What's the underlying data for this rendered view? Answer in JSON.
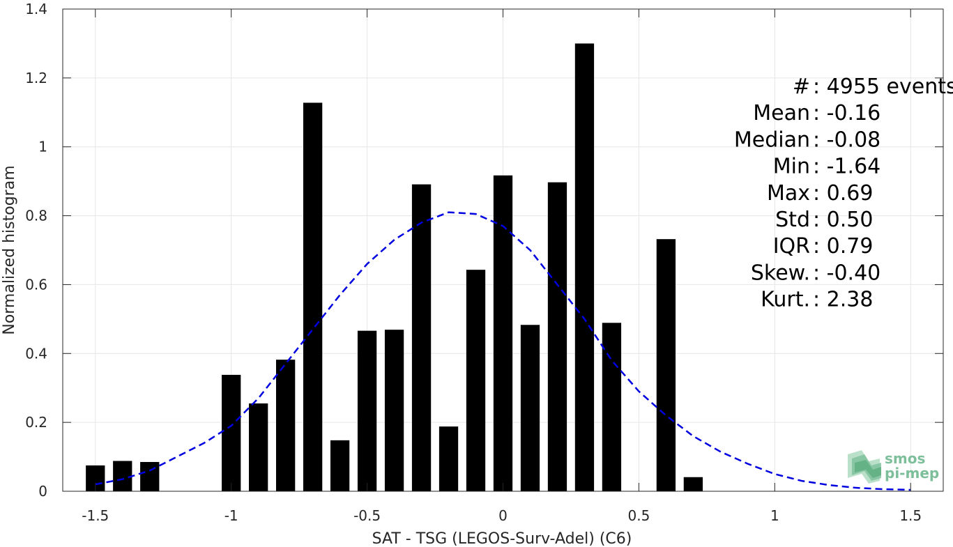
{
  "chart_data": {
    "type": "bar",
    "xlabel": "SAT - TSG (LEGOS-Surv-Adel) (C6)",
    "ylabel": "Normalized histogram",
    "xlim": [
      -1.62,
      1.62
    ],
    "ylim": [
      0,
      1.4
    ],
    "xticks": [
      -1.5,
      -1,
      -0.5,
      0,
      0.5,
      1,
      1.5
    ],
    "xtick_labels": [
      "-1.5",
      "-1",
      "-0.5",
      "0",
      "0.5",
      "1",
      "1.5"
    ],
    "yticks": [
      0,
      0.2,
      0.4,
      0.6,
      0.8,
      1,
      1.2,
      1.4
    ],
    "ytick_labels": [
      "0",
      "0.2",
      "0.4",
      "0.6",
      "0.8",
      "1",
      "1.2",
      "1.4"
    ],
    "grid": true,
    "bar_width": 0.07,
    "x": [
      -1.5,
      -1.4,
      -1.3,
      -1.2,
      -1.1,
      -1.0,
      -0.9,
      -0.8,
      -0.7,
      -0.6,
      -0.5,
      -0.4,
      -0.3,
      -0.2,
      -0.1,
      0.0,
      0.1,
      0.2,
      0.3,
      0.4,
      0.5,
      0.6,
      0.7
    ],
    "values": [
      0.075,
      0.088,
      0.085,
      0,
      0,
      0.338,
      0.255,
      0.382,
      1.128,
      0.148,
      0.466,
      0.469,
      0.891,
      0.188,
      0.643,
      0.917,
      0.483,
      0.897,
      1.3,
      0.489,
      0,
      0.732,
      0.041
    ],
    "fit_curve": {
      "style": "dashed",
      "x": [
        -1.5,
        -1.4,
        -1.3,
        -1.2,
        -1.1,
        -1.0,
        -0.9,
        -0.8,
        -0.7,
        -0.6,
        -0.5,
        -0.4,
        -0.3,
        -0.2,
        -0.1,
        0.0,
        0.1,
        0.2,
        0.3,
        0.4,
        0.5,
        0.6,
        0.7,
        0.8,
        0.9,
        1.0,
        1.1,
        1.2,
        1.3,
        1.4,
        1.5
      ],
      "y": [
        0.02,
        0.035,
        0.06,
        0.1,
        0.14,
        0.19,
        0.27,
        0.37,
        0.47,
        0.57,
        0.66,
        0.73,
        0.78,
        0.81,
        0.805,
        0.77,
        0.7,
        0.6,
        0.5,
        0.38,
        0.29,
        0.22,
        0.16,
        0.115,
        0.08,
        0.05,
        0.03,
        0.018,
        0.01,
        0.006,
        0.004
      ]
    },
    "stats": [
      {
        "label": "#  ",
        "value": ": 4955 events"
      },
      {
        "label": "Mean",
        "value": ": -0.16"
      },
      {
        "label": "Median",
        "value": ": -0.08"
      },
      {
        "label": "Min",
        "value": ": -1.64"
      },
      {
        "label": "Max",
        "value": ": 0.69"
      },
      {
        "label": "Std",
        "value": ": 0.50"
      },
      {
        "label": "IQR",
        "value": ": 0.79"
      },
      {
        "label": "Skew.",
        "value": ": -0.40"
      },
      {
        "label": "Kurt.",
        "value": ": 2.38"
      }
    ]
  },
  "logo": {
    "line1": "smos",
    "line2": "pi-mep",
    "color": "#7dbf9a"
  },
  "colors": {
    "bar": "#000000",
    "fit": "#0000e0",
    "grid": "#e6e6e6",
    "axis": "#262626"
  }
}
